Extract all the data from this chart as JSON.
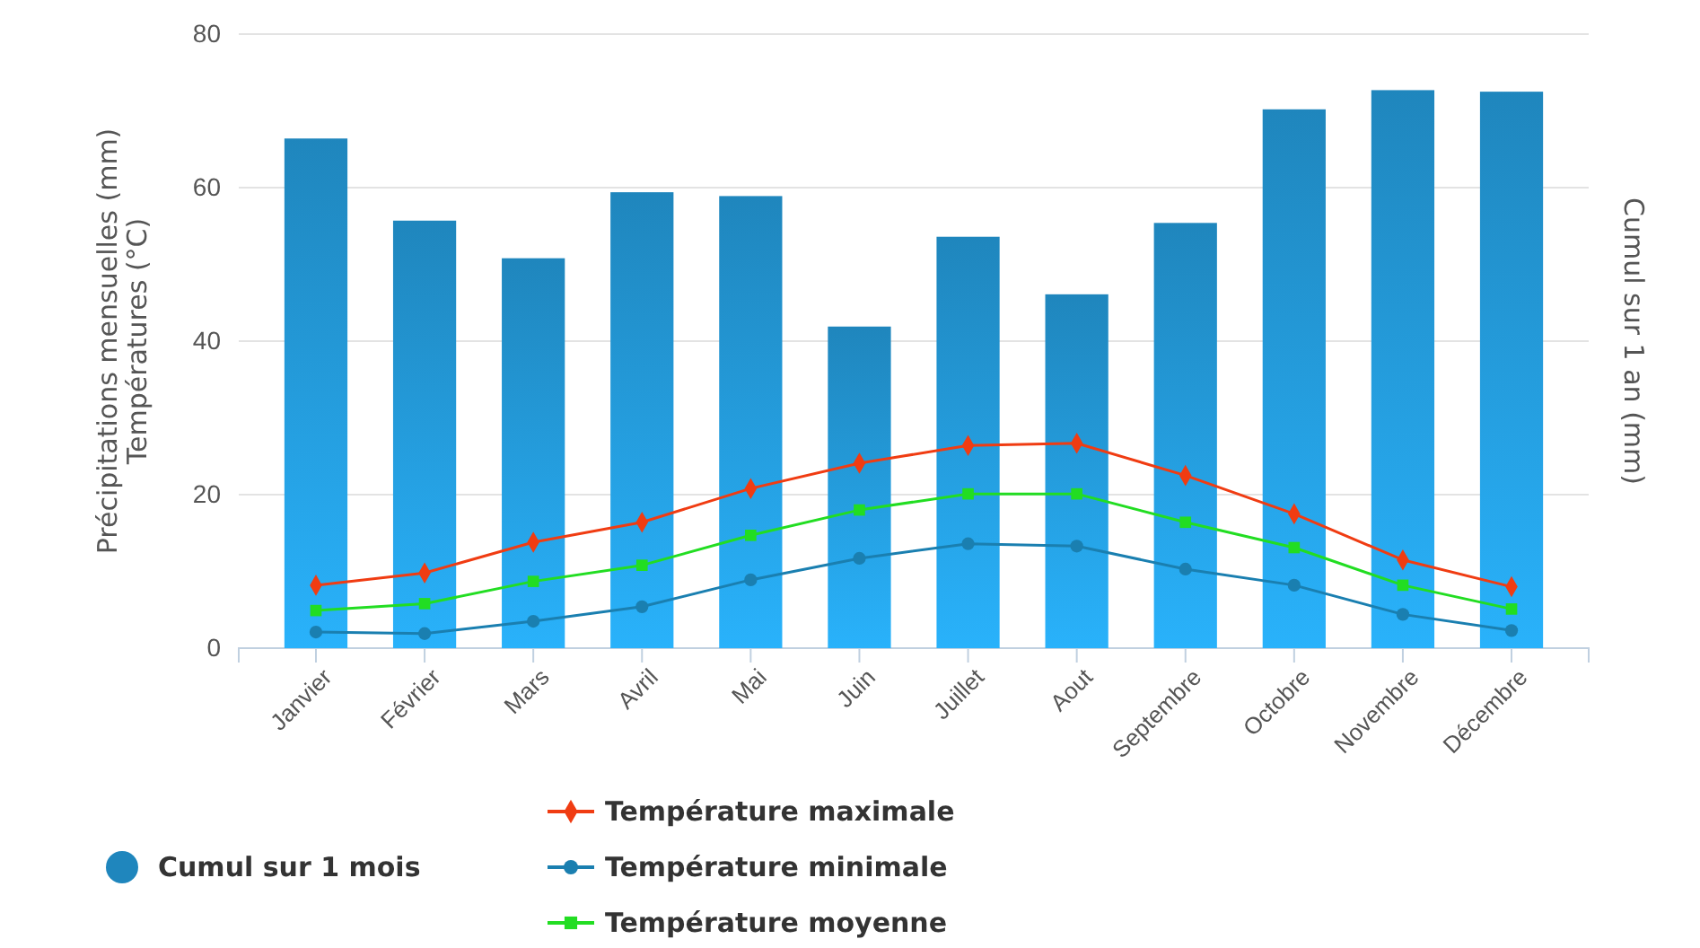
{
  "chart_data": {
    "type": "bar",
    "ylabel": "Précipitations mensuelles (mm)\nTempératures (°C)",
    "y2label": "Cumul sur 1 an (mm)",
    "categories": [
      "Janvier",
      "Février",
      "Mars",
      "Avril",
      "Mai",
      "Juin",
      "Juillet",
      "Aout",
      "Septembre",
      "Octobre",
      "Novembre",
      "Décembre"
    ],
    "series": [
      {
        "name": "Cumul sur 1 mois",
        "color": "#1f86bd",
        "marker": "circle",
        "values": [
          66.4,
          55.7,
          50.8,
          59.4,
          58.9,
          41.9,
          53.6,
          46.1,
          55.4,
          70.2,
          72.7,
          72.5
        ]
      },
      {
        "name": "Température maximale",
        "type": "line",
        "color": "#f03c12",
        "marker": "diamond",
        "values": [
          8.2,
          9.8,
          13.8,
          16.4,
          20.8,
          24.1,
          26.4,
          26.7,
          22.5,
          17.5,
          11.5,
          8.0
        ]
      },
      {
        "name": "Température minimale",
        "type": "line",
        "color": "#1a7fb0",
        "marker": "circle",
        "values": [
          2.1,
          1.9,
          3.5,
          5.4,
          8.9,
          11.7,
          13.6,
          13.3,
          10.3,
          8.2,
          4.4,
          2.3
        ]
      },
      {
        "name": "Température moyenne",
        "type": "line",
        "color": "#22dd22",
        "marker": "square",
        "values": [
          4.9,
          5.8,
          8.7,
          10.8,
          14.7,
          18.0,
          20.1,
          20.1,
          16.4,
          13.1,
          8.2,
          5.1
        ]
      }
    ],
    "ylim": [
      0,
      80
    ],
    "yticks": [
      0,
      20,
      40,
      60,
      80
    ],
    "grid": "y",
    "legend": "bottom"
  }
}
